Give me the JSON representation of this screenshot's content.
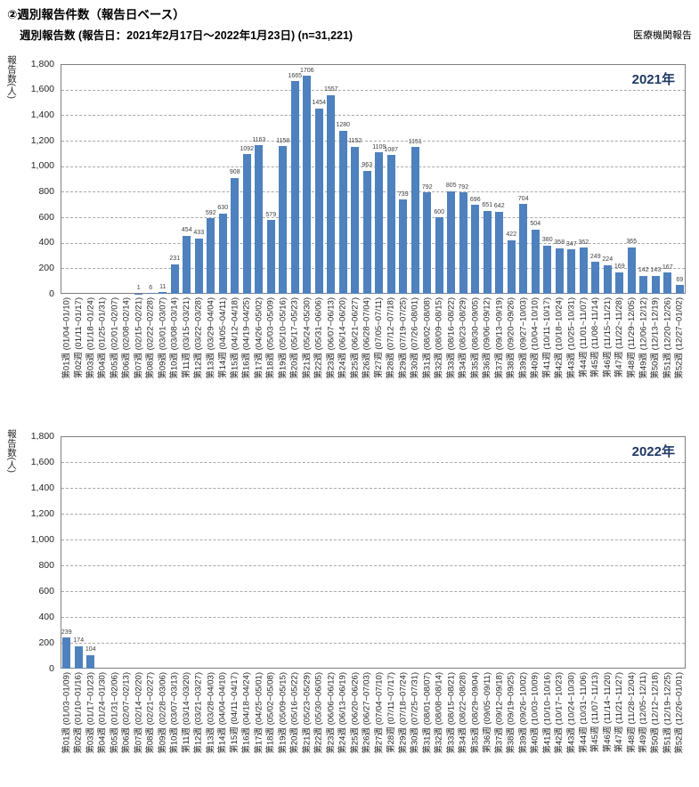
{
  "header": {
    "section_title": "②週別報告件数（報告日ベース）",
    "subtitle": "週別報告数 (報告日：2021年2月17日～2022年1月23日)  (n=31,221)",
    "source_label": "医療機関報告"
  },
  "colors": {
    "bar": "#4E81BD",
    "plot_border": "#7F7F7F",
    "gridline": "#A8A8A8",
    "year_label": "#1F3864"
  },
  "chart_data": [
    {
      "type": "bar",
      "title": "2021年",
      "ylabel": "報告数(人)",
      "ylim": [
        0,
        1800
      ],
      "ytick_step": 200,
      "grid": "horizontal-dashed",
      "legend": "none",
      "categories": [
        "第01週 (01/04~01/10)",
        "第02週 (01/11~01/17)",
        "第03週 (01/18~01/24)",
        "第04週 (01/25~01/31)",
        "第05週 (02/01~02/07)",
        "第06週 (02/08~02/14)",
        "第07週 (02/15~02/21)",
        "第08週 (02/22~02/28)",
        "第09週 (03/01~03/07)",
        "第10週 (03/08~03/14)",
        "第11週 (03/15~03/21)",
        "第12週 (03/22~03/28)",
        "第13週 (03/29~04/04)",
        "第14週 (04/05~04/11)",
        "第15週 (04/12~04/18)",
        "第16週 (04/19~04/25)",
        "第17週 (04/26~05/02)",
        "第18週 (05/03~05/09)",
        "第19週 (05/10~05/16)",
        "第20週 (05/17~05/23)",
        "第21週 (05/24~05/30)",
        "第22週 (05/31~06/06)",
        "第23週 (06/07~06/13)",
        "第24週 (06/14~06/20)",
        "第25週 (06/21~06/27)",
        "第26週 (06/28~07/04)",
        "第27週 (07/05~07/11)",
        "第28週 (07/12~07/18)",
        "第29週 (07/19~07/25)",
        "第30週 (07/26~08/01)",
        "第31週 (08/02~08/08)",
        "第32週 (08/09~08/15)",
        "第33週 (08/16~08/22)",
        "第34週 (08/23~08/29)",
        "第35週 (08/30~09/05)",
        "第36週 (09/06~09/12)",
        "第37週 (09/13~09/19)",
        "第38週 (09/20~09/26)",
        "第39週 (09/27~10/03)",
        "第40週 (10/04~10/10)",
        "第41週 (10/11~10/17)",
        "第42週 (10/18~10/24)",
        "第43週 (10/25~10/31)",
        "第44週 (11/01~11/07)",
        "第45週 (11/08~11/14)",
        "第46週 (11/15~11/21)",
        "第47週 (11/22~11/28)",
        "第48週 (11/29~12/05)",
        "第49週 (12/06~12/12)",
        "第50週 (12/13~12/19)",
        "第51週 (12/20~12/26)",
        "第52週 (12/27~01/02)"
      ],
      "values": [
        null,
        null,
        null,
        null,
        null,
        null,
        1,
        6,
        11,
        231,
        454,
        433,
        592,
        630,
        908,
        1092,
        1163,
        579,
        1158,
        1665,
        1706,
        1454,
        1557,
        1280,
        1152,
        963,
        1109,
        1087,
        739,
        1151,
        792,
        600,
        805,
        792,
        696,
        651,
        642,
        422,
        704,
        504,
        380,
        358,
        347,
        362,
        249,
        224,
        169,
        365,
        142,
        143,
        167,
        69
      ]
    },
    {
      "type": "bar",
      "title": "2022年",
      "ylabel": "報告数(人)",
      "ylim": [
        0,
        1800
      ],
      "ytick_step": 200,
      "grid": "horizontal-dashed",
      "legend": "none",
      "categories": [
        "第01週 (01/03~01/09)",
        "第02週 (01/10~01/16)",
        "第03週 (01/17~01/23)",
        "第04週 (01/24~01/30)",
        "第05週 (01/31~02/06)",
        "第06週 (02/07~02/13)",
        "第07週 (02/14~02/20)",
        "第08週 (02/21~02/27)",
        "第09週 (02/28~03/06)",
        "第10週 (03/07~03/13)",
        "第11週 (03/14~03/20)",
        "第12週 (03/21~03/27)",
        "第13週 (03/28~04/03)",
        "第14週 (04/04~04/10)",
        "第15週 (04/11~04/17)",
        "第16週 (04/18~04/24)",
        "第17週 (04/25~05/01)",
        "第18週 (05/02~05/08)",
        "第19週 (05/09~05/15)",
        "第20週 (05/16~05/22)",
        "第21週 (05/23~05/29)",
        "第22週 (05/30~06/05)",
        "第23週 (06/06~06/12)",
        "第24週 (06/13~06/19)",
        "第25週 (06/20~06/26)",
        "第26週 (06/27~07/03)",
        "第27週 (07/04~07/10)",
        "第28週 (07/11~07/17)",
        "第29週 (07/18~07/24)",
        "第30週 (07/25~07/31)",
        "第31週 (08/01~08/07)",
        "第32週 (08/08~08/14)",
        "第33週 (08/15~08/21)",
        "第34週 (08/22~08/28)",
        "第35週 (08/29~09/04)",
        "第36週 (09/05~09/11)",
        "第37週 (09/12~09/18)",
        "第38週 (09/19~09/25)",
        "第39週 (09/26~10/02)",
        "第40週 (10/03~10/09)",
        "第41週 (10/10~10/16)",
        "第42週 (10/17~10/23)",
        "第43週 (10/24~10/30)",
        "第44週 (10/31~11/06)",
        "第45週 (11/07~11/13)",
        "第46週 (11/14~11/20)",
        "第47週 (11/21~11/27)",
        "第48週 (11/28~12/04)",
        "第49週 (12/05~12/11)",
        "第50週 (12/12~12/18)",
        "第51週 (12/19~12/25)",
        "第52週 (12/26~01/01)"
      ],
      "values": [
        239,
        174,
        104,
        null,
        null,
        null,
        null,
        null,
        null,
        null,
        null,
        null,
        null,
        null,
        null,
        null,
        null,
        null,
        null,
        null,
        null,
        null,
        null,
        null,
        null,
        null,
        null,
        null,
        null,
        null,
        null,
        null,
        null,
        null,
        null,
        null,
        null,
        null,
        null,
        null,
        null,
        null,
        null,
        null,
        null,
        null,
        null,
        null,
        null,
        null,
        null,
        null
      ]
    }
  ]
}
